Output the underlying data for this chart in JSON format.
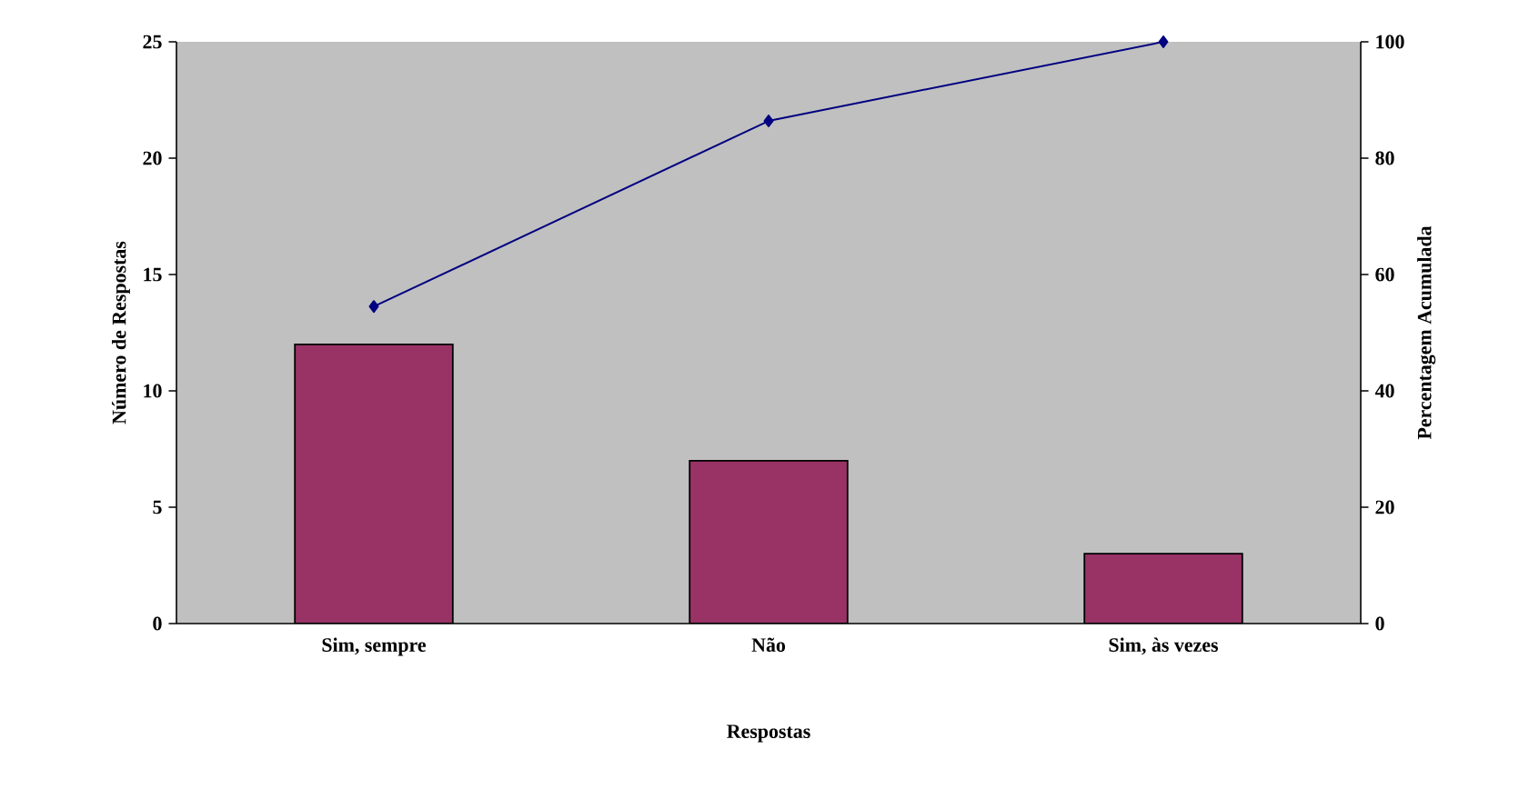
{
  "chart_data": {
    "type": "bar",
    "xlabel": "Respostas",
    "ylabel": "Número de Respostas",
    "y2label": "Percentagem Acumulada",
    "categories": [
      "Sim, sempre",
      "Não",
      "Sim, às vezes"
    ],
    "ylim": [
      0,
      25
    ],
    "yticks": [
      0,
      5,
      10,
      15,
      20,
      25
    ],
    "y2lim": [
      0,
      100
    ],
    "y2ticks": [
      0,
      20,
      40,
      60,
      80,
      100
    ],
    "marker": "diamond",
    "line_style": "solid",
    "series": [
      {
        "color": "#993366",
        "values": [
          12,
          7,
          3
        ]
      },
      {
        "type": "line",
        "axis": "y2",
        "color": "#000080",
        "values": [
          54.5,
          86.4,
          100
        ]
      }
    ]
  }
}
